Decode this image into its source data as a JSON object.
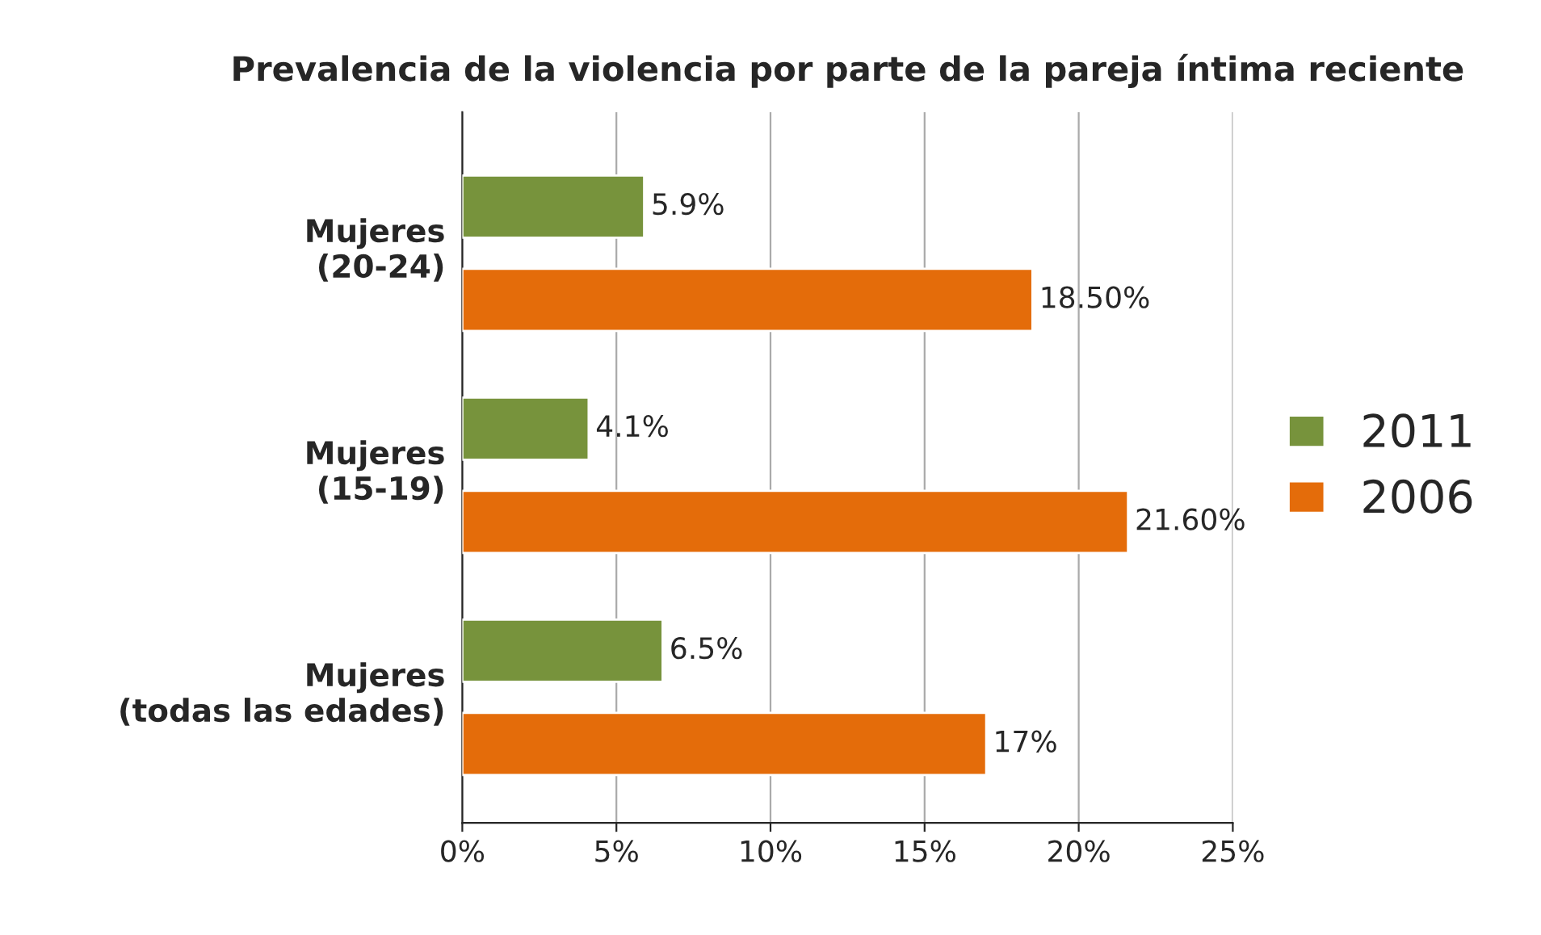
{
  "chart_data": {
    "type": "bar",
    "orientation": "horizontal",
    "title": "Prevalencia de la violencia por parte de la pareja íntima reciente",
    "categories": [
      "Mujeres\n(20-24)",
      "Mujeres\n(15-19)",
      "Mujeres\n(todas las edades)"
    ],
    "series": [
      {
        "name": "2011",
        "color": "#77933c",
        "values": [
          5.9,
          4.1,
          6.5
        ],
        "value_labels": [
          "5.9%",
          "4.1%",
          "6.5%"
        ]
      },
      {
        "name": "2006",
        "color": "#e46c0a",
        "values": [
          18.5,
          21.6,
          17
        ],
        "value_labels": [
          "18.50%",
          "21.60%",
          "17%"
        ]
      }
    ],
    "xlim": [
      0,
      25
    ],
    "xticks": [
      {
        "value": 0,
        "label": "0%"
      },
      {
        "value": 5,
        "label": "5%"
      },
      {
        "value": 10,
        "label": "10%"
      },
      {
        "value": 15,
        "label": "15%"
      },
      {
        "value": 20,
        "label": "20%"
      },
      {
        "value": 25,
        "label": "25%"
      }
    ],
    "grid": "x",
    "legend": "right"
  }
}
